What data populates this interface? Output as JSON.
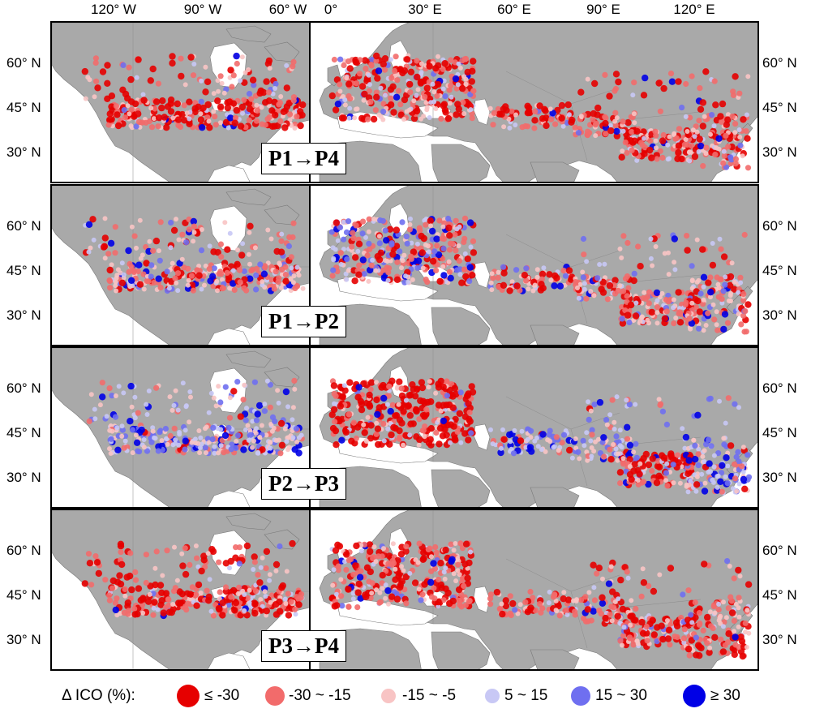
{
  "map": {
    "lon_ticks": [
      "120° W",
      "90° W",
      "60° W",
      "0°",
      "30° E",
      "60° E",
      "90° E",
      "120° E"
    ],
    "lat_ticks": [
      "60° N",
      "45° N",
      "30° N"
    ],
    "panels": [
      {
        "label": "P1→P4",
        "scheme": "mostly-decrease"
      },
      {
        "label": "P1→P2",
        "scheme": "mixed"
      },
      {
        "label": "P2→P3",
        "scheme": "europe-decrease-asia-increase"
      },
      {
        "label": "P3→P4",
        "scheme": "mostly-decrease"
      }
    ]
  },
  "legend": {
    "title": "Δ ICO (%):",
    "items": [
      {
        "label": "≤ -30",
        "color": "#e60000"
      },
      {
        "label": "-30 ~ -15",
        "color": "#f26b6b"
      },
      {
        "label": "-15 ~ -5",
        "color": "#f8c4c4"
      },
      {
        "label": "5 ~ 15",
        "color": "#c8c8f5"
      },
      {
        "label": "15 ~ 30",
        "color": "#6f6ff0"
      },
      {
        "label": "≥ 30",
        "color": "#0000e6"
      }
    ]
  },
  "colors": {
    "land": "#a9a9a9",
    "water": "#ffffff",
    "border": "#7a7a7a"
  }
}
